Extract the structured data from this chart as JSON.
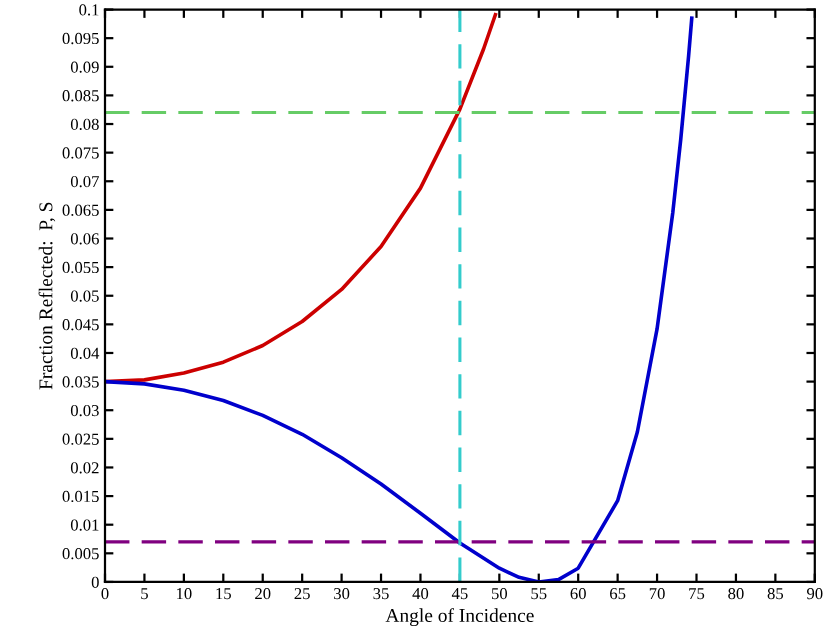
{
  "chart_data": {
    "type": "line",
    "xlabel": "Angle of Incidence",
    "ylabel": "Fraction Reflected:  P, S",
    "xlim": [
      0,
      90
    ],
    "xticks": [
      0,
      5,
      10,
      15,
      20,
      25,
      30,
      35,
      40,
      45,
      50,
      55,
      60,
      65,
      70,
      75,
      80,
      85,
      90
    ],
    "ylim": [
      0,
      0.1
    ],
    "yticks": [
      0,
      0.005,
      0.01,
      0.015,
      0.02,
      0.025,
      0.03,
      0.035,
      0.04,
      0.045,
      0.05,
      0.055,
      0.06,
      0.065,
      0.07,
      0.075,
      0.08,
      0.085,
      0.09,
      0.095,
      0.1
    ],
    "grid": false,
    "legend": false,
    "marker": "none",
    "line_style": "solid",
    "series": [
      {
        "color": "#cc0000",
        "x": [
          0,
          5,
          10,
          15,
          20,
          25,
          30,
          35,
          40,
          45,
          48,
          49.5
        ],
        "values": [
          0.035,
          0.0353,
          0.0365,
          0.0384,
          0.0413,
          0.0455,
          0.0511,
          0.0586,
          0.0688,
          0.0826,
          0.0931,
          0.0991
        ]
      },
      {
        "color": "#0000cc",
        "x": [
          0,
          5,
          10,
          15,
          20,
          25,
          30,
          35,
          40,
          45,
          50,
          52.5,
          55,
          57.5,
          60,
          65,
          67.5,
          70,
          72,
          73,
          74,
          74.4
        ],
        "values": [
          0.035,
          0.0346,
          0.0335,
          0.0317,
          0.0291,
          0.0258,
          0.0217,
          0.0171,
          0.012,
          0.0068,
          0.0024,
          0.0008,
          0.0,
          0.0004,
          0.0024,
          0.0142,
          0.0262,
          0.0442,
          0.0646,
          0.0773,
          0.0919,
          0.0985
        ]
      }
    ],
    "ref_lines": [
      {
        "axis": "y",
        "value": 0.082,
        "color": "#66cc66",
        "line_style": "dashed"
      },
      {
        "axis": "y",
        "value": 0.007,
        "color": "#800080",
        "line_style": "dashed"
      },
      {
        "axis": "x",
        "value": 45,
        "color": "#33cccc",
        "line_style": "dashed"
      }
    ]
  }
}
